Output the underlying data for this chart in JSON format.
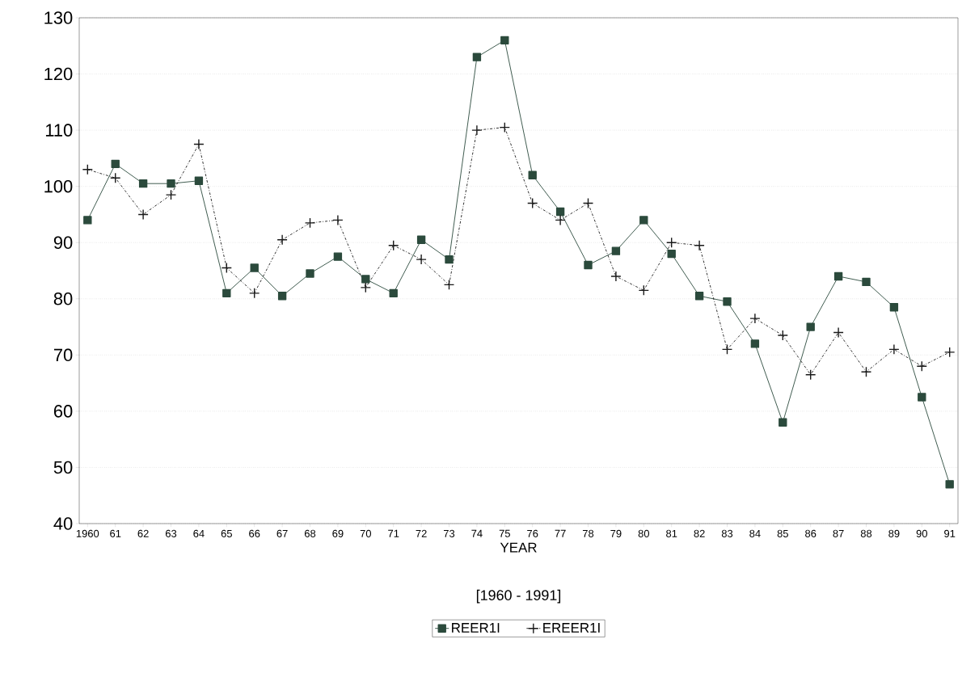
{
  "chart_data": {
    "type": "line",
    "xlabel": "YEAR",
    "annotations": [
      "[1960 - 1991]"
    ],
    "categories": [
      "1960",
      "61",
      "62",
      "63",
      "64",
      "65",
      "66",
      "67",
      "68",
      "69",
      "70",
      "71",
      "72",
      "73",
      "74",
      "75",
      "76",
      "77",
      "78",
      "79",
      "80",
      "81",
      "82",
      "83",
      "84",
      "85",
      "86",
      "87",
      "88",
      "89",
      "90",
      "91"
    ],
    "series": [
      {
        "name": "REER1I",
        "color": "#2b4a3c",
        "marker": "square",
        "line_style": "solid",
        "values": [
          94,
          104,
          100.5,
          100.5,
          101,
          81,
          85.5,
          80.5,
          84.5,
          87.5,
          83.5,
          81,
          90.5,
          87,
          123,
          126,
          102,
          95.5,
          86,
          88.5,
          94,
          88,
          80.5,
          79.5,
          72,
          58,
          75,
          84,
          83,
          78.5,
          62.5,
          47
        ]
      },
      {
        "name": "EREER1I",
        "color": "#1a1a1a",
        "marker": "cross",
        "line_style": "dashed",
        "values": [
          103,
          101.5,
          95,
          98.5,
          107.5,
          85.5,
          81,
          90.5,
          93.5,
          94,
          82,
          89.5,
          87,
          82.5,
          110,
          110.5,
          97,
          94,
          97,
          84,
          81.5,
          90,
          89.5,
          71,
          76.5,
          73.5,
          66.5,
          74,
          67,
          71,
          68,
          70.5
        ]
      }
    ],
    "ylim": [
      40,
      130
    ],
    "yticks": [
      40,
      50,
      60,
      70,
      80,
      90,
      100,
      110,
      120,
      130
    ],
    "grid": "y",
    "legend": "bottom"
  }
}
